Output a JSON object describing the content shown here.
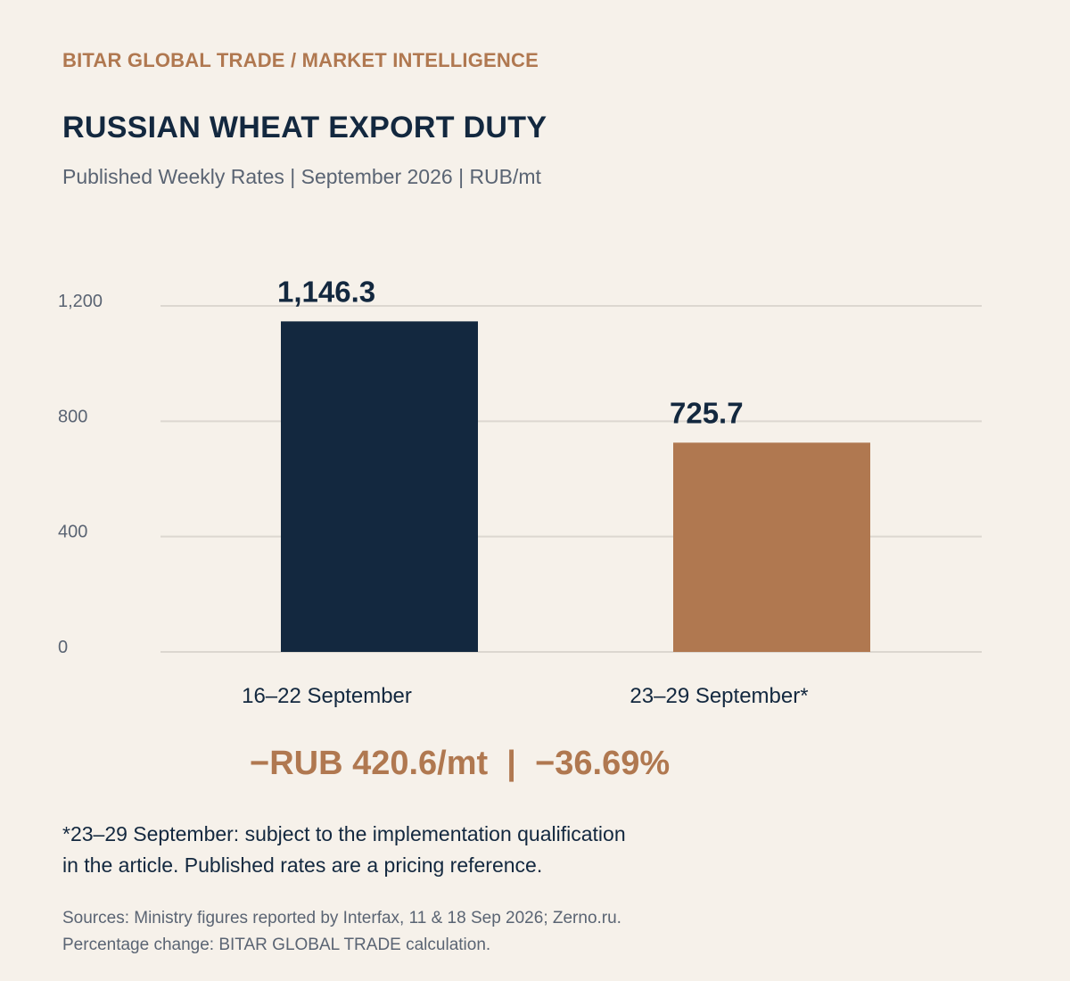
{
  "header": {
    "eyebrow": "BITAR GLOBAL TRADE / MARKET INTELLIGENCE",
    "title": "RUSSIAN WHEAT EXPORT DUTY",
    "subtitle": "Published Weekly Rates | September 2026 | RUB/mt"
  },
  "chart_data": {
    "type": "bar",
    "title": "RUSSIAN WHEAT EXPORT DUTY",
    "subtitle": "Published Weekly Rates | September 2026 | RUB/mt",
    "xlabel": "",
    "ylabel": "",
    "categories": [
      "16–22 September",
      "23–29 September*"
    ],
    "values": [
      1146.3,
      725.7
    ],
    "value_labels": [
      "1,146.3",
      "725.7"
    ],
    "bar_colors": [
      "#13283f",
      "#b07850"
    ],
    "ylim": [
      0,
      1200
    ],
    "yticks": [
      0,
      400,
      800,
      1200
    ],
    "ytick_labels": [
      "0",
      "400",
      "800",
      "1,200"
    ],
    "grid": true,
    "legend": "none"
  },
  "summary": {
    "change_abs": "−RUB 420.6/mt",
    "separator": "|",
    "change_pct": "−36.69%"
  },
  "footnote": {
    "line1": "*23–29 September: subject to the implementation qualification",
    "line2": "in the article. Published rates are a pricing reference."
  },
  "sources": {
    "line1": "Sources: Ministry figures reported by Interfax, 11 & 18 Sep 2026; Zerno.ru.",
    "line2": "Percentage change: BITAR GLOBAL TRADE calculation."
  },
  "colors": {
    "background": "#f6f1ea",
    "navy": "#13283f",
    "copper": "#b07850",
    "grid": "#dcd7d0",
    "muted": "#5a6473"
  }
}
